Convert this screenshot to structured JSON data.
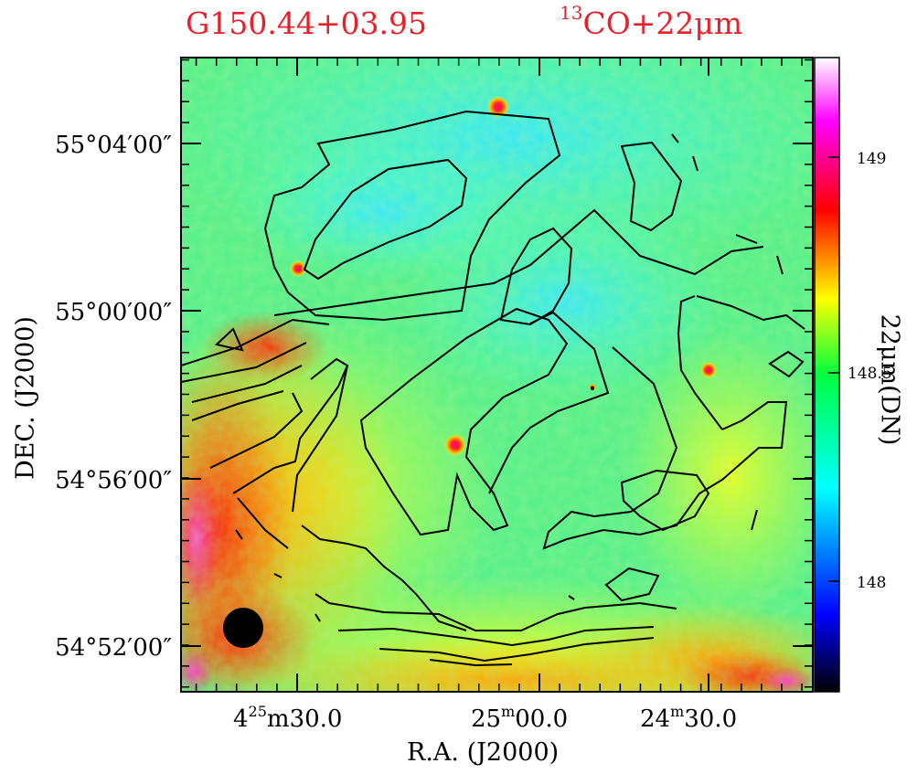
{
  "title_left": "G150.44+03.95",
  "title_right": {
    "sup": "13",
    "text": "CO+22μm"
  },
  "chart_data": {
    "type": "heatmap",
    "xlabel": "R.A. (J2000)",
    "ylabel": "DEC. (J2000)",
    "colorbar_label": "22μm(DN)",
    "x_ticks": [
      {
        "h": "4",
        "m": "25",
        "s": "30.0",
        "label": "4h25m30.0s"
      },
      {
        "m": "25",
        "s": "00.0",
        "label": "25m00.0s"
      },
      {
        "m": "24",
        "s": "30.0",
        "label": "24m30.0s"
      }
    ],
    "y_ticks": [
      "55°04′00″",
      "55°00′00″",
      "54°56′00″",
      "54°52′00″"
    ],
    "colorbar_ticks": [
      "149",
      "148.5",
      "148"
    ],
    "colorbar_range": [
      147.7,
      149.25
    ],
    "point_sources": 5,
    "beam": "filled circle lower-left",
    "colors": {
      "high": "#ff00ff",
      "mid_high": "#ff0000",
      "mid": "#ffff00",
      "mid_low": "#00ff80",
      "low": "#00ffff",
      "lowest": "#0000ff"
    }
  }
}
